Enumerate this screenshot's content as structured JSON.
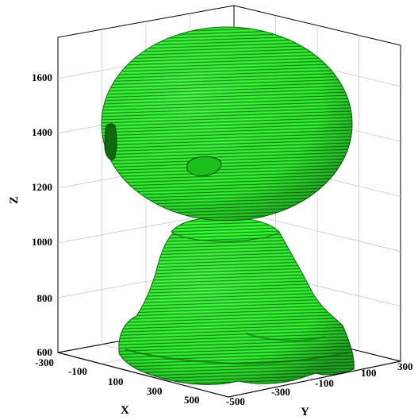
{
  "chart_data": {
    "type": "surface-3d",
    "xlabel": "X",
    "ylabel": "Y",
    "zlabel": "Z",
    "x_ticks": [
      "-300",
      "-100",
      "100",
      "300",
      "500"
    ],
    "y_ticks": [
      "-500",
      "-300",
      "-100",
      "100",
      "300"
    ],
    "z_ticks": [
      "600",
      "800",
      "1000",
      "1200",
      "1400",
      "1600"
    ],
    "xlim": [
      -300,
      500
    ],
    "ylim": [
      -500,
      300
    ],
    "zlim": [
      600,
      1750
    ],
    "grid": true,
    "object": {
      "description_shape": "head",
      "color": "#22ee22",
      "dark_color": "#0a5a0a",
      "head": {
        "center_z": 1420,
        "radius_z": 300
      },
      "neck_z": 1040,
      "base": {
        "z_bottom": 600,
        "z_top": 1000
      }
    }
  }
}
